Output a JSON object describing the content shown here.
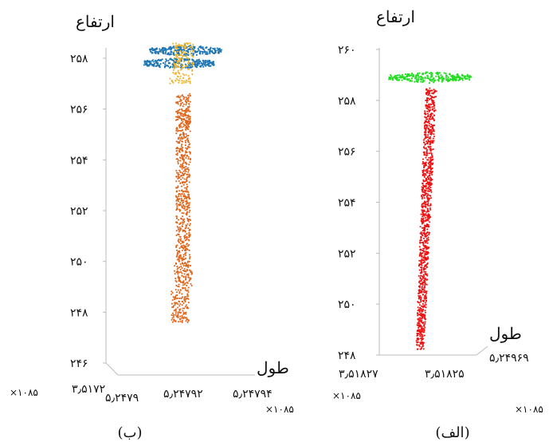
{
  "figure": {
    "panels": [
      {
        "id": "b",
        "caption": "(ب)",
        "ylabel": "ارتفاع",
        "xlabel": "طول",
        "scale_notes": [
          "×۱۰۸۵",
          "×۱۰۸۵"
        ],
        "x_tick_labels": [
          "۳٫۵۱۷۲",
          "۵٫۲۴۷۹",
          "۵٫۲۴۷۹۲",
          "۵٫۲۴۷۹۴"
        ],
        "y_tick_labels": [
          "۲۴۶",
          "۲۴۸",
          "۲۵۰",
          "۲۵۲",
          "۲۵۴",
          "۲۵۶",
          "۲۵۸"
        ]
      },
      {
        "id": "alef",
        "caption": "(الف)",
        "ylabel": "ارتفاع",
        "xlabel": "طول",
        "scale_notes": [
          "×۱۰۸۵",
          "×۱۰۸۵"
        ],
        "x_tick_labels": [
          "۳٫۵۱۸۲۷",
          "۳٫۵۱۸۲۵",
          "۵٫۲۴۹۶۹"
        ],
        "y_tick_labels": [
          "۲۴۸",
          "۲۵۰",
          "۲۵۲",
          "۲۵۴",
          "۲۵۶",
          "۲۵۸",
          "۲۶۰"
        ]
      }
    ]
  },
  "chart_data": [
    {
      "type": "scatter",
      "panel": "b",
      "title": "",
      "xlabel": "طول",
      "ylabel": "ارتفاع",
      "ylim": [
        246,
        259
      ],
      "grid": false,
      "series": [
        {
          "color": "#1f77b4",
          "values": [
            {
              "y": 258.3
            },
            {
              "y": 257.8
            }
          ]
        },
        {
          "color": "#f0b429",
          "values": [
            {
              "y_from": 257.0,
              "y_to": 258.6
            }
          ]
        },
        {
          "color": "#e0651a",
          "values": [
            {
              "y_from": 247.6,
              "y_to": 256.6
            }
          ]
        }
      ]
    },
    {
      "type": "scatter",
      "panel": "alef",
      "title": "",
      "xlabel": "طول",
      "ylabel": "ارتفاع",
      "ylim": [
        248,
        260
      ],
      "grid": false,
      "series": [
        {
          "color": "#22dd22",
          "values": [
            {
              "y": 258.9
            }
          ]
        },
        {
          "color": "#ee1111",
          "values": [
            {
              "y_from": 248.2,
              "y_to": 258.5
            }
          ]
        }
      ]
    }
  ]
}
